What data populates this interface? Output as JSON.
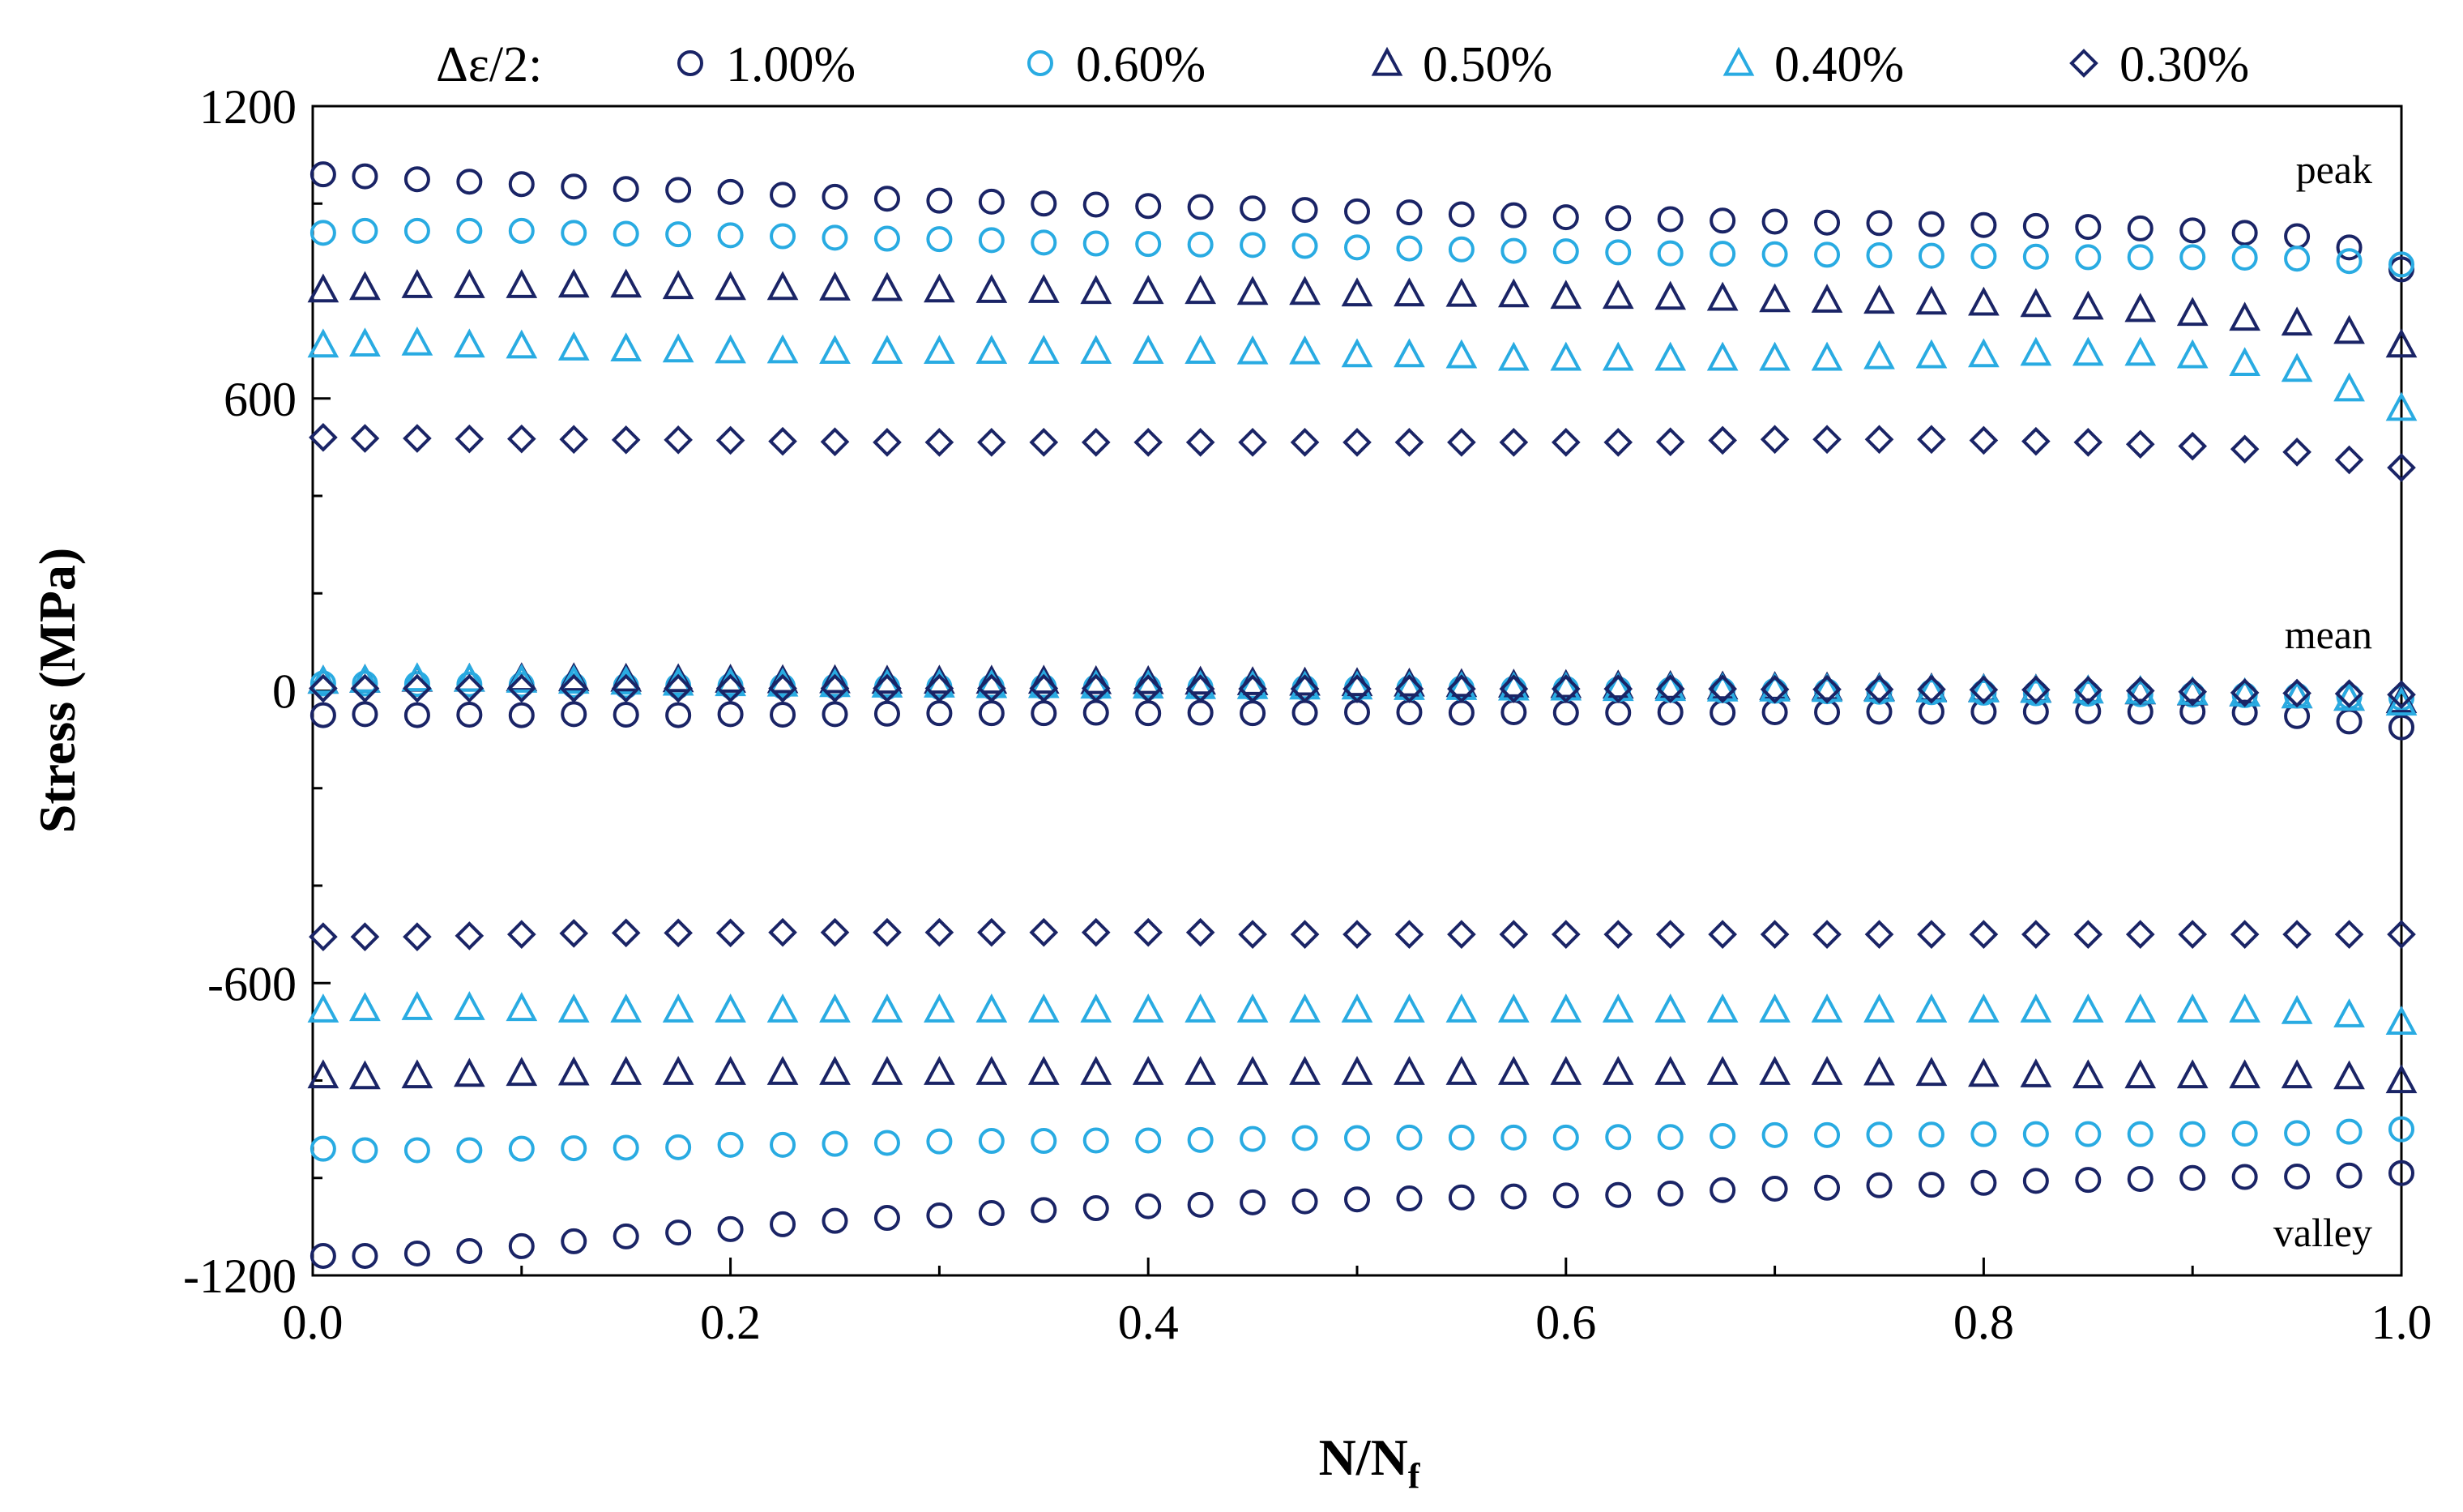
{
  "chart_data": {
    "type": "scatter",
    "title": "",
    "xlabel": "N/N",
    "xlabel_subscript": "f",
    "ylabel": "Stress (MPa)",
    "xlim": [
      0.0,
      1.0
    ],
    "ylim": [
      -1200,
      1200
    ],
    "xticks": [
      "0.0",
      "0.2",
      "0.4",
      "0.6",
      "0.8",
      "1.0"
    ],
    "yticks": [
      "1200",
      "600",
      "0",
      "-600",
      "-1200"
    ],
    "legend_title": "Δε/2:",
    "legend_position": "top",
    "annotations": {
      "peak": "peak",
      "mean": "mean",
      "valley": "valley"
    },
    "x": [
      0.005,
      0.025,
      0.05,
      0.075,
      0.1,
      0.125,
      0.15,
      0.175,
      0.2,
      0.225,
      0.25,
      0.275,
      0.3,
      0.325,
      0.35,
      0.375,
      0.4,
      0.425,
      0.45,
      0.475,
      0.5,
      0.525,
      0.55,
      0.575,
      0.6,
      0.625,
      0.65,
      0.675,
      0.7,
      0.725,
      0.75,
      0.775,
      0.8,
      0.825,
      0.85,
      0.875,
      0.9,
      0.925,
      0.95,
      0.975,
      1.0
    ],
    "series": [
      {
        "name": "1.00%",
        "marker": "circle",
        "color": "#1a2466",
        "peak": [
          1060,
          1056,
          1050,
          1045,
          1040,
          1035,
          1030,
          1028,
          1024,
          1018,
          1014,
          1010,
          1006,
          1004,
          1000,
          998,
          995,
          993,
          990,
          987,
          984,
          982,
          978,
          976,
          972,
          970,
          968,
          965,
          963,
          961,
          960,
          958,
          956,
          954,
          952,
          949,
          945,
          940,
          933,
          910,
          865
        ],
        "mean": [
          -50,
          -48,
          -50,
          -49,
          -50,
          -48,
          -49,
          -50,
          -48,
          -49,
          -48,
          -47,
          -46,
          -46,
          -46,
          -45,
          -46,
          -45,
          -46,
          -45,
          -44,
          -44,
          -45,
          -44,
          -45,
          -45,
          -44,
          -45,
          -44,
          -44,
          -43,
          -43,
          -43,
          -43,
          -42,
          -43,
          -43,
          -45,
          -52,
          -63,
          -75
        ],
        "valley": [
          -1160,
          -1160,
          -1155,
          -1150,
          -1140,
          -1130,
          -1120,
          -1112,
          -1105,
          -1095,
          -1088,
          -1082,
          -1077,
          -1072,
          -1066,
          -1062,
          -1058,
          -1055,
          -1050,
          -1048,
          -1044,
          -1042,
          -1040,
          -1038,
          -1036,
          -1035,
          -1032,
          -1025,
          -1022,
          -1020,
          -1015,
          -1014,
          -1010,
          -1006,
          -1004,
          -1002,
          -1000,
          -998,
          -997,
          -995,
          -990
        ]
      },
      {
        "name": "0.60%",
        "marker": "circle",
        "color": "#29abe2",
        "peak": [
          940,
          944,
          944,
          944,
          944,
          940,
          938,
          937,
          935,
          933,
          930,
          928,
          927,
          925,
          920,
          918,
          917,
          916,
          915,
          913,
          910,
          908,
          906,
          903,
          902,
          900,
          898,
          897,
          896,
          895,
          894,
          893,
          892,
          891,
          890,
          890,
          890,
          889,
          887,
          882,
          875
        ],
        "mean": [
          15,
          15,
          14,
          13,
          12,
          11,
          10,
          10,
          10,
          9,
          9,
          8,
          8,
          8,
          8,
          7,
          7,
          7,
          6,
          6,
          6,
          5,
          5,
          4,
          4,
          3,
          2,
          1,
          0,
          -1,
          -2,
          -3,
          -4,
          -5,
          -6,
          -7,
          -8,
          -9,
          -10,
          -12,
          -15
        ],
        "valley": [
          -940,
          -943,
          -943,
          -943,
          -940,
          -939,
          -938,
          -937,
          -932,
          -932,
          -930,
          -928,
          -925,
          -924,
          -924,
          -923,
          -923,
          -922,
          -920,
          -918,
          -918,
          -917,
          -917,
          -917,
          -917,
          -916,
          -916,
          -914,
          -912,
          -912,
          -911,
          -911,
          -910,
          -910,
          -910,
          -910,
          -910,
          -909,
          -908,
          -905,
          -900
        ]
      },
      {
        "name": "0.50%",
        "marker": "triangle",
        "color": "#1a2466",
        "peak": [
          823,
          828,
          832,
          832,
          832,
          833,
          833,
          830,
          828,
          828,
          827,
          826,
          823,
          822,
          822,
          820,
          820,
          820,
          818,
          818,
          815,
          815,
          814,
          813,
          810,
          810,
          808,
          806,
          803,
          802,
          800,
          798,
          796,
          793,
          788,
          783,
          775,
          765,
          755,
          738,
          710
        ],
        "mean": [
          20,
          22,
          24,
          24,
          25,
          25,
          24,
          23,
          22,
          21,
          21,
          20,
          20,
          20,
          20,
          19,
          19,
          18,
          17,
          16,
          15,
          14,
          13,
          12,
          11,
          10,
          9,
          8,
          7,
          6,
          5,
          4,
          3,
          2,
          0,
          -2,
          -4,
          -6,
          -10,
          -15,
          -20
        ],
        "valley": [
          -790,
          -792,
          -790,
          -787,
          -785,
          -784,
          -783,
          -783,
          -783,
          -783,
          -783,
          -783,
          -783,
          -783,
          -783,
          -783,
          -783,
          -783,
          -783,
          -783,
          -783,
          -783,
          -783,
          -783,
          -783,
          -783,
          -783,
          -783,
          -783,
          -783,
          -784,
          -785,
          -787,
          -788,
          -790,
          -790,
          -790,
          -790,
          -790,
          -792,
          -800
        ]
      },
      {
        "name": "0.40%",
        "marker": "triangle",
        "color": "#29abe2",
        "peak": [
          710,
          712,
          714,
          710,
          708,
          704,
          702,
          700,
          698,
          698,
          697,
          697,
          697,
          697,
          697,
          697,
          697,
          697,
          696,
          696,
          690,
          690,
          688,
          683,
          683,
          683,
          683,
          683,
          683,
          683,
          686,
          688,
          690,
          693,
          693,
          693,
          688,
          672,
          660,
          620,
          580
        ],
        "mean": [
          20,
          22,
          25,
          24,
          22,
          20,
          18,
          16,
          15,
          14,
          13,
          12,
          12,
          11,
          11,
          10,
          10,
          9,
          9,
          8,
          8,
          7,
          7,
          6,
          6,
          5,
          5,
          4,
          4,
          3,
          3,
          2,
          2,
          1,
          0,
          -1,
          -3,
          -6,
          -10,
          -15,
          -25
        ],
        "valley": [
          -655,
          -652,
          -650,
          -650,
          -652,
          -655,
          -655,
          -655,
          -655,
          -655,
          -655,
          -655,
          -655,
          -655,
          -655,
          -655,
          -655,
          -655,
          -655,
          -655,
          -655,
          -655,
          -655,
          -655,
          -655,
          -655,
          -655,
          -655,
          -655,
          -655,
          -655,
          -655,
          -655,
          -655,
          -655,
          -655,
          -655,
          -655,
          -658,
          -665,
          -680
        ]
      },
      {
        "name": "0.30%",
        "marker": "diamond",
        "color": "#1a2466",
        "peak": [
          520,
          518,
          518,
          517,
          517,
          516,
          515,
          515,
          514,
          512,
          511,
          510,
          510,
          510,
          510,
          510,
          510,
          510,
          510,
          510,
          510,
          510,
          510,
          510,
          510,
          510,
          511,
          514,
          516,
          516,
          516,
          516,
          514,
          512,
          510,
          506,
          502,
          496,
          490,
          474,
          458
        ],
        "mean": [
          5,
          5,
          5,
          5,
          5,
          5,
          5,
          5,
          5,
          5,
          5,
          5,
          5,
          5,
          5,
          5,
          4,
          4,
          4,
          4,
          4,
          4,
          4,
          4,
          4,
          4,
          4,
          4,
          3,
          3,
          3,
          3,
          2,
          2,
          1,
          0,
          -2,
          -4,
          -5,
          -6,
          -8
        ],
        "valley": [
          -505,
          -505,
          -505,
          -503,
          -500,
          -498,
          -497,
          -497,
          -497,
          -496,
          -496,
          -496,
          -496,
          -496,
          -496,
          -496,
          -496,
          -496,
          -500,
          -500,
          -500,
          -500,
          -500,
          -500,
          -500,
          -500,
          -500,
          -500,
          -500,
          -500,
          -500,
          -500,
          -500,
          -500,
          -500,
          -500,
          -500,
          -500,
          -500,
          -500,
          -500
        ]
      }
    ]
  }
}
